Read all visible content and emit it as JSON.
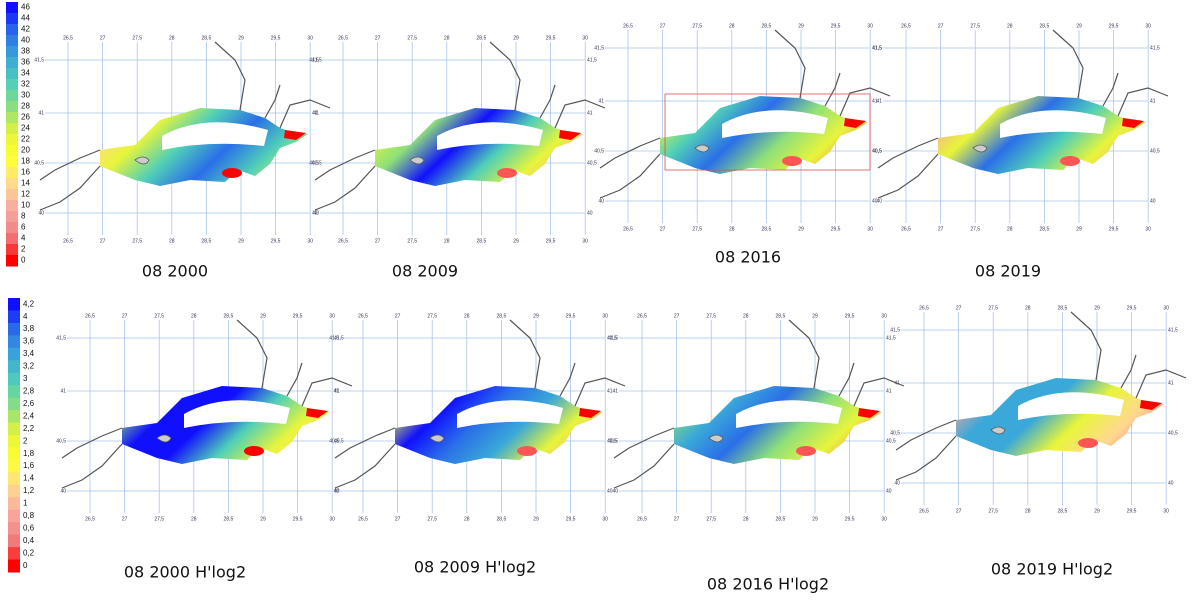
{
  "legends": [
    {
      "labels": [
        "46",
        "44",
        "42",
        "40",
        "38",
        "36",
        "34",
        "32",
        "30",
        "28",
        "26",
        "24",
        "22",
        "20",
        "18",
        "16",
        "14",
        "12",
        "10",
        "8",
        "6",
        "4",
        "2",
        "0"
      ]
    },
    {
      "labels": [
        "4,2",
        "4",
        "3,8",
        "3,6",
        "3,4",
        "3,2",
        "3",
        "2,8",
        "2,6",
        "2,4",
        "2,2",
        "2",
        "1,8",
        "1,6",
        "1,4",
        "1,2",
        "1",
        "0,8",
        "0,6",
        "0,4",
        "0,2",
        "0"
      ]
    }
  ],
  "lon_ticks": [
    "26,5",
    "27",
    "27,5",
    "28",
    "28,5",
    "29",
    "29,5",
    "30"
  ],
  "lat_ticks": [
    "41,5",
    "41",
    "40,5",
    "40"
  ],
  "panels": [
    {
      "caption": "08 2000"
    },
    {
      "caption": "08 2009"
    },
    {
      "caption": "08 2016"
    },
    {
      "caption": "08 2019"
    },
    {
      "caption": "08 2000 H'log2"
    },
    {
      "caption": "08 2009 H'log2"
    },
    {
      "caption": "08 2016 H'log2"
    },
    {
      "caption": "08 2019 H'log2"
    }
  ]
}
